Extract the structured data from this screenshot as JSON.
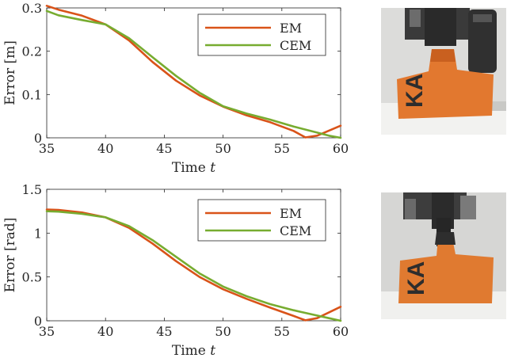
{
  "chart_data": [
    {
      "type": "line",
      "xlabel": "Time",
      "xlabel_var": "t",
      "ylabel": "Error [m]",
      "xlim": [
        35,
        60
      ],
      "ylim": [
        0,
        0.3
      ],
      "xticks": [
        35,
        40,
        45,
        50,
        55,
        60
      ],
      "yticks": [
        0,
        0.1,
        0.2,
        0.3
      ],
      "ytick_labels": [
        "0",
        "0.1",
        "0.2",
        "0.3"
      ],
      "grid": false,
      "legend_position": "top-right",
      "series": [
        {
          "name": "EM",
          "color": "#d95319",
          "x": [
            35,
            36,
            38,
            40,
            42,
            44,
            46,
            48,
            50,
            52,
            54,
            56,
            57,
            58,
            60
          ],
          "y": [
            0.305,
            0.296,
            0.282,
            0.262,
            0.225,
            0.175,
            0.132,
            0.098,
            0.072,
            0.052,
            0.036,
            0.016,
            0.001,
            0.005,
            0.028
          ]
        },
        {
          "name": "CEM",
          "color": "#77ac30",
          "x": [
            35,
            36,
            38,
            40,
            42,
            44,
            46,
            48,
            50,
            52,
            54,
            56,
            58,
            59,
            60
          ],
          "y": [
            0.293,
            0.283,
            0.272,
            0.262,
            0.23,
            0.186,
            0.143,
            0.104,
            0.073,
            0.056,
            0.042,
            0.026,
            0.012,
            0.005,
            0.0
          ]
        }
      ]
    },
    {
      "type": "line",
      "xlabel": "Time",
      "xlabel_var": "t",
      "ylabel": "Error [rad]",
      "xlim": [
        35,
        60
      ],
      "ylim": [
        0,
        1.5
      ],
      "xticks": [
        35,
        40,
        45,
        50,
        55,
        60
      ],
      "yticks": [
        0,
        0.5,
        1,
        1.5
      ],
      "ytick_labels": [
        "0",
        "0.5",
        "1",
        "1.5"
      ],
      "grid": false,
      "legend_position": "top-right",
      "series": [
        {
          "name": "EM",
          "color": "#d95319",
          "x": [
            35,
            36,
            38,
            40,
            42,
            44,
            46,
            48,
            50,
            52,
            54,
            56,
            57,
            58,
            60
          ],
          "y": [
            1.27,
            1.265,
            1.235,
            1.18,
            1.06,
            0.88,
            0.68,
            0.5,
            0.36,
            0.25,
            0.15,
            0.055,
            0.005,
            0.03,
            0.16
          ]
        },
        {
          "name": "CEM",
          "color": "#77ac30",
          "x": [
            35,
            36,
            38,
            40,
            42,
            44,
            46,
            48,
            50,
            52,
            54,
            56,
            58,
            59,
            60
          ],
          "y": [
            1.25,
            1.245,
            1.22,
            1.18,
            1.08,
            0.92,
            0.73,
            0.54,
            0.39,
            0.28,
            0.19,
            0.12,
            0.06,
            0.03,
            0.0
          ]
        }
      ]
    }
  ],
  "photos": {
    "top": {
      "logo_text": "KA",
      "description_icon": "robot-gripper-holding-orange-tool-icon"
    },
    "bottom": {
      "logo_text": "KA",
      "description_icon": "robot-gripper-holding-orange-tool-icon"
    }
  },
  "colors": {
    "em": "#d95319",
    "cem": "#77ac30",
    "axis": "#262626"
  }
}
